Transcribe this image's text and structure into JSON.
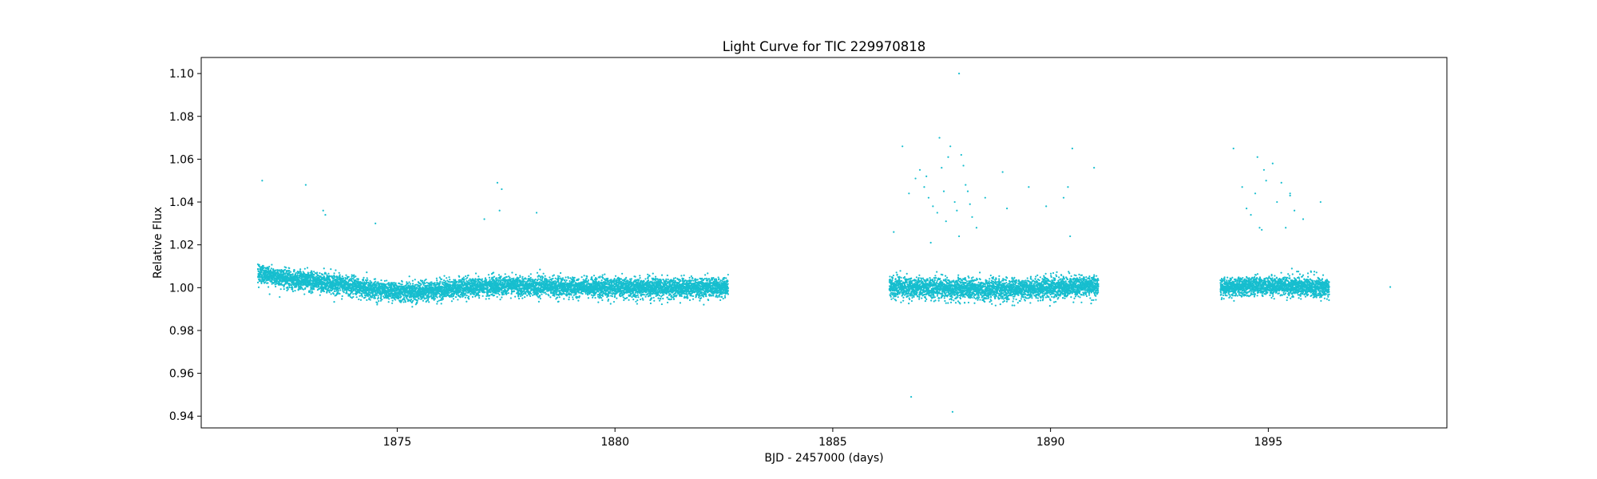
{
  "chart_data": {
    "type": "scatter",
    "title": "Light Curve for TIC 229970818",
    "xlabel": "BJD - 2457000 (days)",
    "ylabel": "Relative Flux",
    "xlim": [
      1870.5,
      1899.1
    ],
    "ylim": [
      0.9345,
      1.1075
    ],
    "xticks": [
      1875,
      1880,
      1885,
      1890,
      1895
    ],
    "xtick_labels": [
      "1875",
      "1880",
      "1885",
      "1890",
      "1895"
    ],
    "yticks": [
      0.94,
      0.96,
      0.98,
      1.0,
      1.02,
      1.04,
      1.06,
      1.08,
      1.1
    ],
    "ytick_labels": [
      "0.94",
      "0.96",
      "0.98",
      "1.00",
      "1.02",
      "1.04",
      "1.06",
      "1.08",
      "1.10"
    ],
    "grid": false,
    "marker_color": "#17becf",
    "series": [
      {
        "segments": [
          {
            "x_start": 1871.8,
            "x_end": 1882.6,
            "cadence": 0.0014,
            "trend": [
              [
                1871.8,
                1.007
              ],
              [
                1872.5,
                1.004
              ],
              [
                1873.5,
                1.002
              ],
              [
                1874.5,
                0.999
              ],
              [
                1875.5,
                0.998
              ],
              [
                1876.5,
                1.0
              ],
              [
                1877.5,
                1.001
              ],
              [
                1879.0,
                1.0
              ],
              [
                1882.6,
                1.0
              ]
            ],
            "scatter": 0.0022
          },
          {
            "x_start": 1886.3,
            "x_end": 1891.1,
            "cadence": 0.0014,
            "trend": [
              [
                1886.3,
                1.0
              ],
              [
                1887.5,
                1.0
              ],
              [
                1888.5,
                0.999
              ],
              [
                1890.0,
                1.0
              ],
              [
                1891.1,
                1.001
              ]
            ],
            "scatter": 0.0024
          },
          {
            "x_start": 1893.9,
            "x_end": 1896.4,
            "cadence": 0.0014,
            "trend": [
              [
                1893.9,
                1.0
              ],
              [
                1895.0,
                1.001
              ],
              [
                1896.4,
                1.0
              ]
            ],
            "scatter": 0.0022
          }
        ],
        "outliers": [
          [
            1871.9,
            1.05
          ],
          [
            1872.9,
            1.048
          ],
          [
            1873.3,
            1.036
          ],
          [
            1873.35,
            1.034
          ],
          [
            1874.5,
            1.03
          ],
          [
            1877.0,
            1.032
          ],
          [
            1877.3,
            1.049
          ],
          [
            1877.4,
            1.046
          ],
          [
            1877.35,
            1.036
          ],
          [
            1878.2,
            1.035
          ],
          [
            1886.4,
            1.026
          ],
          [
            1886.6,
            1.066
          ],
          [
            1886.8,
            0.949
          ],
          [
            1886.9,
            1.051
          ],
          [
            1887.0,
            1.055
          ],
          [
            1887.1,
            1.047
          ],
          [
            1887.2,
            1.042
          ],
          [
            1887.3,
            1.038
          ],
          [
            1887.4,
            1.035
          ],
          [
            1887.45,
            1.07
          ],
          [
            1887.5,
            1.056
          ],
          [
            1887.55,
            1.045
          ],
          [
            1887.6,
            1.031
          ],
          [
            1887.7,
            1.066
          ],
          [
            1887.75,
            0.942
          ],
          [
            1887.8,
            1.04
          ],
          [
            1887.85,
            1.036
          ],
          [
            1887.9,
            1.1
          ],
          [
            1887.95,
            1.062
          ],
          [
            1888.0,
            1.057
          ],
          [
            1888.05,
            1.048
          ],
          [
            1888.1,
            1.045
          ],
          [
            1888.2,
            1.033
          ],
          [
            1888.3,
            1.028
          ],
          [
            1888.5,
            1.042
          ],
          [
            1888.9,
            1.054
          ],
          [
            1889.0,
            1.037
          ],
          [
            1889.5,
            1.047
          ],
          [
            1889.9,
            1.038
          ],
          [
            1890.3,
            1.042
          ],
          [
            1890.4,
            1.047
          ],
          [
            1890.45,
            1.024
          ],
          [
            1890.5,
            1.065
          ],
          [
            1891.0,
            1.056
          ],
          [
            1887.15,
            1.052
          ],
          [
            1887.65,
            1.061
          ],
          [
            1888.15,
            1.039
          ],
          [
            1886.75,
            1.044
          ],
          [
            1887.25,
            1.021
          ],
          [
            1887.9,
            1.024
          ],
          [
            1894.2,
            1.065
          ],
          [
            1894.4,
            1.047
          ],
          [
            1894.5,
            1.037
          ],
          [
            1894.6,
            1.034
          ],
          [
            1894.7,
            1.044
          ],
          [
            1894.75,
            1.061
          ],
          [
            1894.8,
            1.028
          ],
          [
            1894.9,
            1.055
          ],
          [
            1894.95,
            1.05
          ],
          [
            1895.1,
            1.058
          ],
          [
            1895.2,
            1.04
          ],
          [
            1895.3,
            1.049
          ],
          [
            1895.4,
            1.028
          ],
          [
            1895.5,
            1.043
          ],
          [
            1895.6,
            1.036
          ],
          [
            1895.5,
            1.044
          ],
          [
            1895.8,
            1.032
          ],
          [
            1896.2,
            1.04
          ],
          [
            1897.8,
            1.0003
          ],
          [
            1894.85,
            1.027
          ]
        ]
      }
    ]
  }
}
